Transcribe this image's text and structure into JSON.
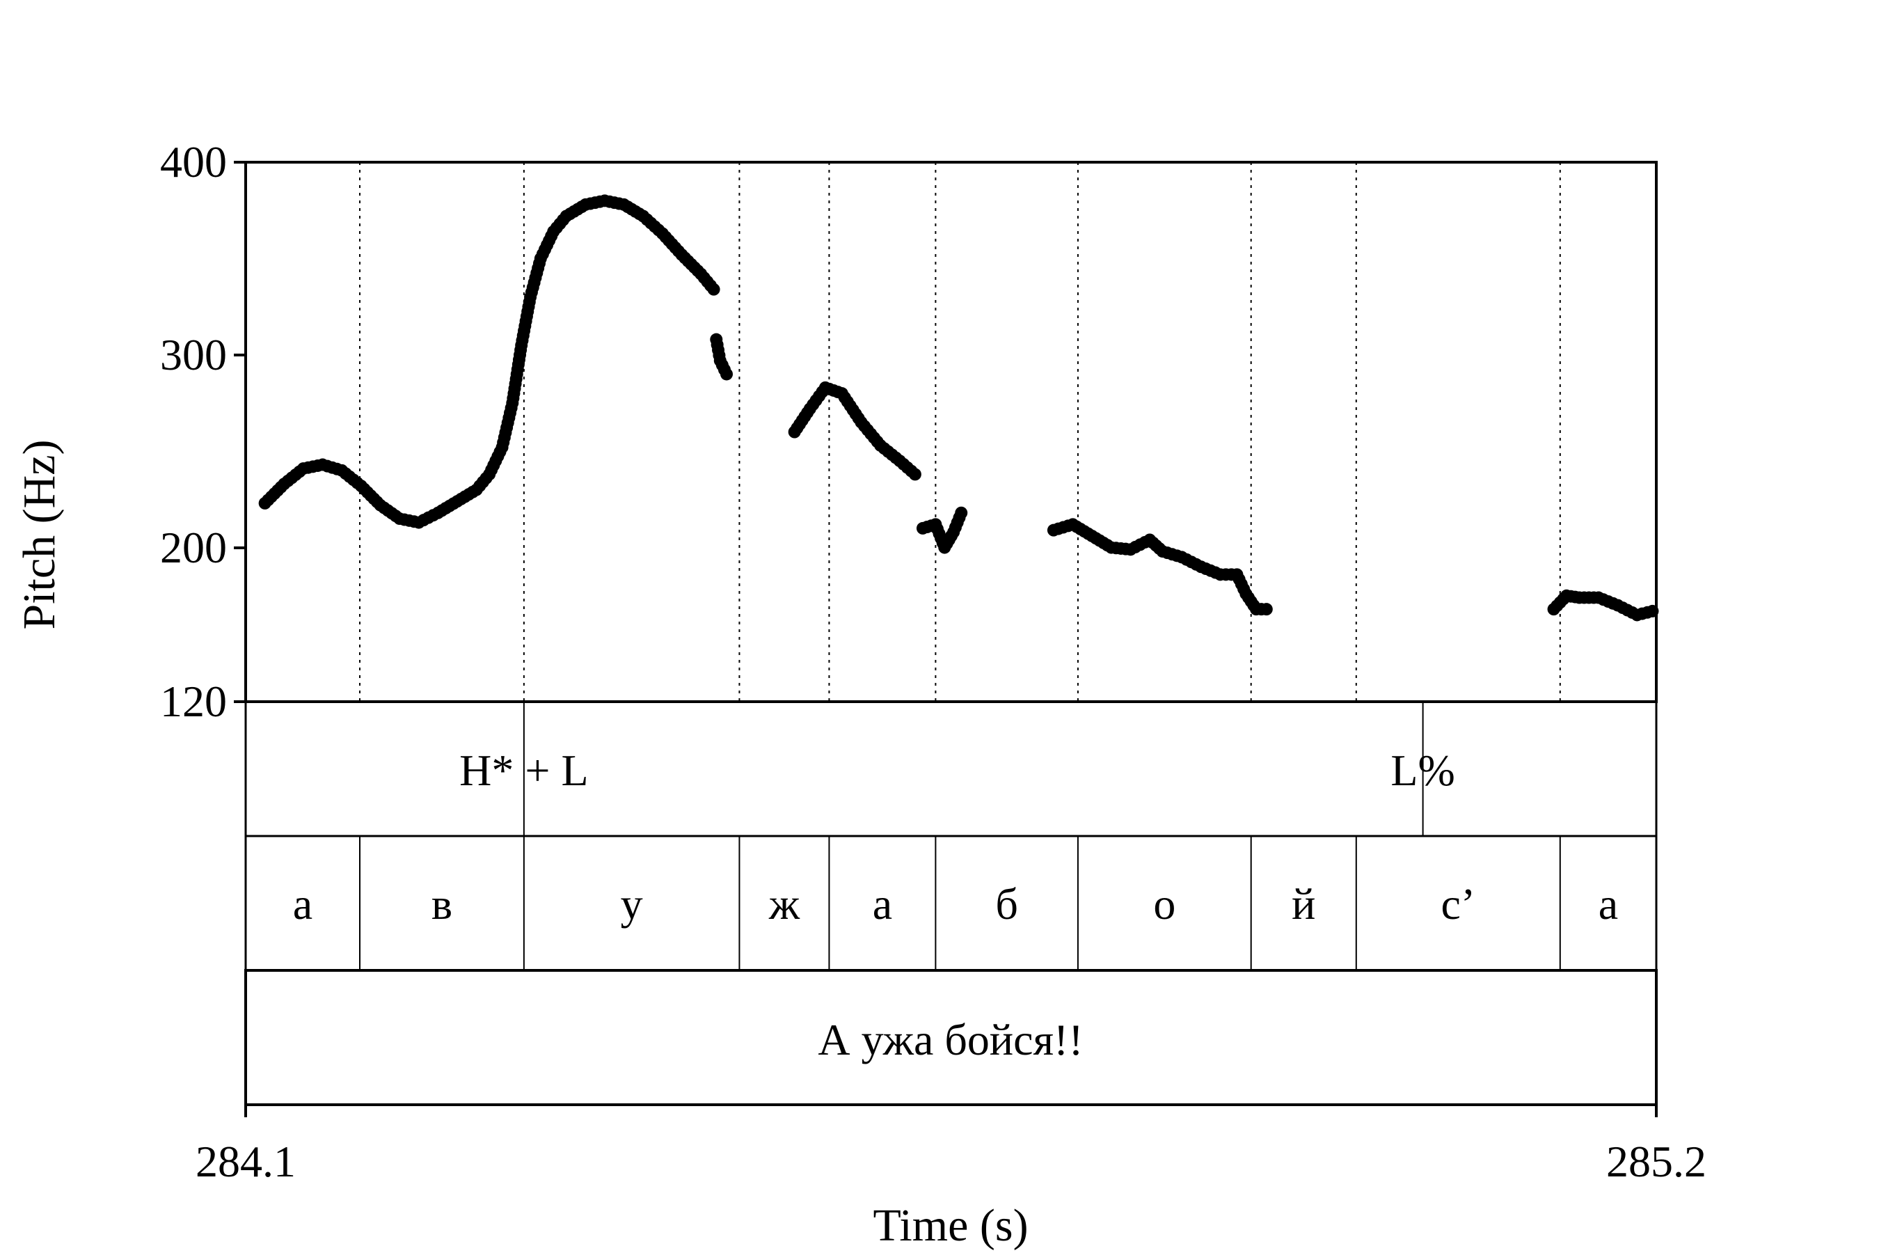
{
  "chart_data": {
    "type": "scatter",
    "ylabel": "Pitch (Hz)",
    "xlabel": "Time (s)",
    "xlim": [
      284.1,
      285.2
    ],
    "ylim": [
      120,
      400
    ],
    "y_ticks": [
      "400",
      "300",
      "200",
      "120"
    ],
    "x_ticks": [
      "284.1",
      "285.2"
    ],
    "tiers": {
      "tones": [
        {
          "label": "H* + L",
          "t": 284.317
        },
        {
          "label": "L%",
          "t": 285.018
        }
      ],
      "segments": [
        {
          "label": "а",
          "start": 284.1,
          "end": 284.189
        },
        {
          "label": "в",
          "start": 284.189,
          "end": 284.317
        },
        {
          "label": "у",
          "start": 284.317,
          "end": 284.485
        },
        {
          "label": "ж",
          "start": 284.485,
          "end": 284.555
        },
        {
          "label": "а",
          "start": 284.555,
          "end": 284.638
        },
        {
          "label": "б",
          "start": 284.638,
          "end": 284.749
        },
        {
          "label": "о",
          "start": 284.749,
          "end": 284.884
        },
        {
          "label": "й",
          "start": 284.884,
          "end": 284.966
        },
        {
          "label": "с’",
          "start": 284.966,
          "end": 285.125
        },
        {
          "label": "а",
          "start": 285.125,
          "end": 285.2
        }
      ],
      "sentence": "А ужа бойся!!"
    },
    "pitch_runs": [
      {
        "points": [
          [
            284.115,
            223
          ],
          [
            284.13,
            233
          ],
          [
            284.145,
            241
          ],
          [
            284.16,
            243
          ],
          [
            284.175,
            240
          ],
          [
            284.19,
            232
          ],
          [
            284.205,
            222
          ],
          [
            284.22,
            215
          ],
          [
            284.235,
            213
          ],
          [
            284.25,
            218
          ],
          [
            284.265,
            224
          ],
          [
            284.28,
            230
          ],
          [
            284.29,
            238
          ],
          [
            284.3,
            252
          ],
          [
            284.308,
            275
          ],
          [
            284.315,
            305
          ],
          [
            284.322,
            330
          ],
          [
            284.33,
            350
          ],
          [
            284.34,
            364
          ],
          [
            284.35,
            372
          ],
          [
            284.365,
            378
          ],
          [
            284.38,
            380
          ],
          [
            284.395,
            378
          ],
          [
            284.41,
            372
          ],
          [
            284.425,
            363
          ],
          [
            284.44,
            352
          ],
          [
            284.455,
            342
          ],
          [
            284.465,
            334
          ]
        ]
      },
      {
        "points": [
          [
            284.467,
            308
          ],
          [
            284.47,
            297
          ],
          [
            284.475,
            290
          ]
        ]
      },
      {
        "points": [
          [
            284.528,
            260
          ],
          [
            284.54,
            272
          ],
          [
            284.552,
            283
          ],
          [
            284.565,
            280
          ],
          [
            284.58,
            265
          ],
          [
            284.595,
            253
          ],
          [
            284.61,
            245
          ],
          [
            284.622,
            238
          ]
        ]
      },
      {
        "points": [
          [
            284.628,
            210
          ],
          [
            284.638,
            212
          ],
          [
            284.645,
            200
          ],
          [
            284.652,
            208
          ],
          [
            284.658,
            218
          ]
        ]
      },
      {
        "points": [
          [
            284.73,
            209
          ],
          [
            284.745,
            212
          ],
          [
            284.76,
            206
          ],
          [
            284.775,
            200
          ],
          [
            284.79,
            199
          ],
          [
            284.805,
            204
          ],
          [
            284.815,
            198
          ],
          [
            284.83,
            195
          ],
          [
            284.845,
            190
          ],
          [
            284.86,
            186
          ],
          [
            284.873,
            186
          ],
          [
            284.88,
            176
          ],
          [
            284.888,
            168
          ],
          [
            284.896,
            168
          ]
        ]
      },
      {
        "points": [
          [
            285.12,
            168
          ],
          [
            285.13,
            175
          ],
          [
            285.14,
            174
          ],
          [
            285.155,
            174
          ],
          [
            285.17,
            170
          ],
          [
            285.185,
            165
          ],
          [
            285.197,
            167
          ]
        ]
      }
    ]
  }
}
